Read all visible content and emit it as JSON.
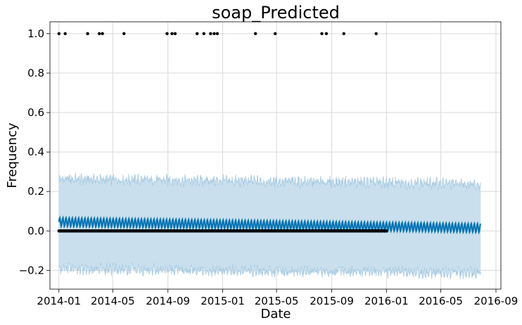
{
  "chart_data": {
    "type": "scatter",
    "title": "soap_Predicted",
    "xlabel": "Date",
    "ylabel": "Frequency",
    "x_ticks": [
      "2014-01",
      "2014-05",
      "2014-09",
      "2015-01",
      "2015-05",
      "2015-09",
      "2016-01",
      "2016-05",
      "2016-09"
    ],
    "y_ticks": [
      "−0.2",
      "0.0",
      "0.2",
      "0.4",
      "0.6",
      "0.8",
      "1.0"
    ],
    "ylim": [
      -0.295,
      1.06
    ],
    "xlim": [
      "2013-12-12",
      "2016-09-12"
    ],
    "grid": true,
    "colors": {
      "forecast_line": "#0072B2",
      "uncertainty_band": "#c9dfee",
      "uncertainty_edge": "#a8cbe3",
      "observed_points": "#000000"
    },
    "observed": {
      "ones_dates": [
        "2014-01-01",
        "2014-01-15",
        "2014-03-06",
        "2014-04-01",
        "2014-04-08",
        "2014-05-26",
        "2014-08-30",
        "2014-09-10",
        "2014-09-17",
        "2014-11-05",
        "2014-11-20",
        "2014-12-05",
        "2014-12-13",
        "2014-12-20",
        "2015-03-15",
        "2015-04-28",
        "2015-08-10",
        "2015-08-20",
        "2015-09-28",
        "2015-12-09"
      ],
      "zeros_range": [
        "2014-01-01",
        "2016-01-01"
      ],
      "zeros_value": 0
    },
    "forecast": {
      "start": "2014-01-01",
      "end": "2016-07-29",
      "yhat_trend_start": 0.045,
      "yhat_trend_end": 0.015,
      "weekly_amplitude": 0.022,
      "upper_start": 0.24,
      "upper_end": 0.215,
      "lower_start": -0.17,
      "lower_end": -0.19
    }
  }
}
